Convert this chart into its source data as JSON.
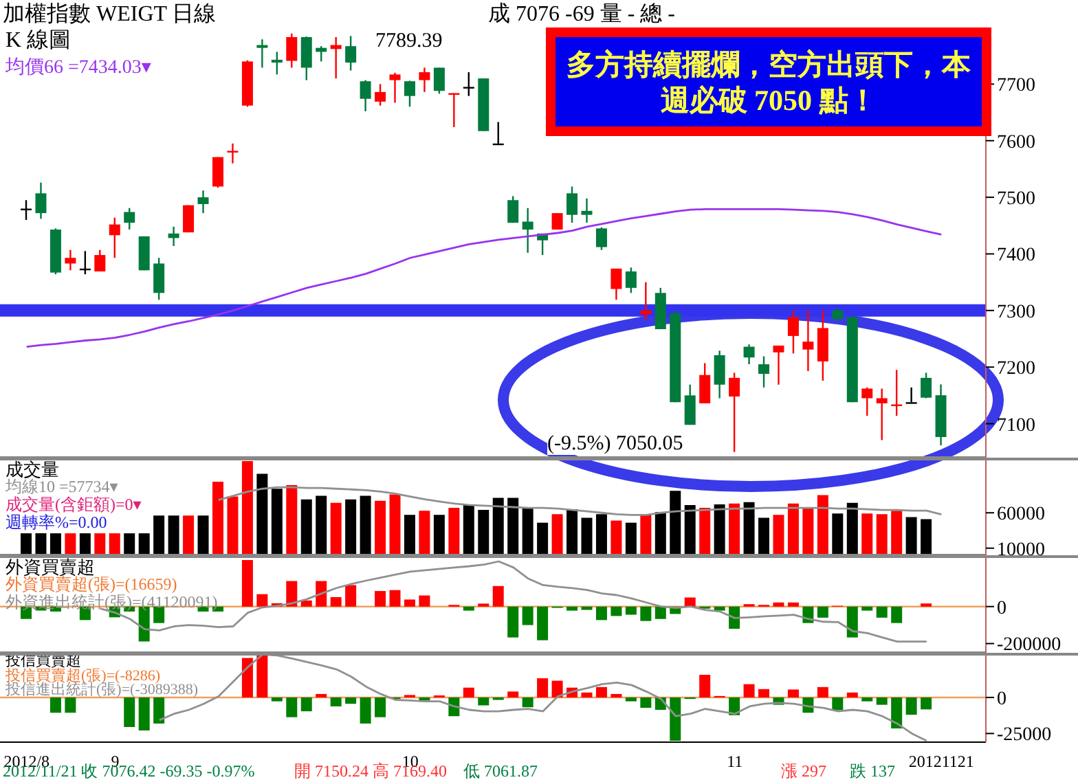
{
  "chart_data": [
    {
      "type": "candlestick",
      "title": "加權指數 WEIGT 日線",
      "subtitle": "成 7076 -69 量 - 總 -",
      "ylabel": "K 線圖",
      "tick_labels": "y",
      "legend": "top left",
      "categories": [
        "2012/8",
        null,
        null,
        null,
        null,
        null,
        "9",
        null,
        null,
        null,
        null,
        null,
        null,
        null,
        null,
        null,
        null,
        null,
        null,
        null,
        null,
        null,
        null,
        null,
        null,
        null,
        "10",
        null,
        null,
        null,
        null,
        null,
        null,
        null,
        null,
        null,
        null,
        null,
        null,
        null,
        null,
        null,
        null,
        null,
        null,
        null,
        null,
        null,
        "11",
        null,
        null,
        null,
        null,
        null,
        null,
        null,
        null,
        null,
        null,
        null,
        null,
        null,
        "20121121"
      ],
      "ohlc": [
        [
          7480,
          7495,
          7460,
          7480
        ],
        [
          7507,
          7526,
          7462,
          7472
        ],
        [
          7443,
          7445,
          7364,
          7367
        ],
        [
          7383,
          7407,
          7371,
          7393
        ],
        [
          7374,
          7405,
          7364,
          7374
        ],
        [
          7369,
          7407,
          7369,
          7398
        ],
        [
          7433,
          7464,
          7393,
          7452
        ],
        [
          7474,
          7481,
          7443,
          7455
        ],
        [
          7431,
          7431,
          7371,
          7371
        ],
        [
          7383,
          7393,
          7319,
          7331
        ],
        [
          7436,
          7448,
          7414,
          7428
        ],
        [
          7438,
          7486,
          7438,
          7486
        ],
        [
          7500,
          7512,
          7472,
          7488
        ],
        [
          7519,
          7571,
          7517,
          7571
        ],
        [
          7580,
          7595,
          7560,
          7582
        ],
        [
          7662,
          7742,
          7660,
          7740
        ],
        [
          7769,
          7779,
          7729,
          7764
        ],
        [
          7743,
          7757,
          7717,
          7738
        ],
        [
          7741,
          7789.39,
          7729,
          7783
        ],
        [
          7783,
          7784,
          7707,
          7729
        ],
        [
          7764,
          7767,
          7740,
          7757
        ],
        [
          7762,
          7783,
          7710,
          7769
        ],
        [
          7767,
          7785,
          7724,
          7738
        ],
        [
          7705,
          7707,
          7652,
          7674
        ],
        [
          7669,
          7700,
          7662,
          7686
        ],
        [
          7707,
          7720,
          7667,
          7717
        ],
        [
          7705,
          7706,
          7660,
          7679
        ],
        [
          7707,
          7729,
          7686,
          7721
        ],
        [
          7729,
          7729,
          7683,
          7688
        ],
        [
          7682,
          7684,
          7624,
          7684
        ],
        [
          7695,
          7721,
          7679,
          7695
        ],
        [
          7710,
          7710,
          7617,
          7617
        ],
        [
          7595,
          7633,
          7595,
          7595
        ],
        [
          7495,
          7502,
          7455,
          7455
        ],
        [
          7457,
          7481,
          7402,
          7443
        ],
        [
          7436,
          7436,
          7398,
          7424
        ],
        [
          7443,
          7472,
          7443,
          7472
        ],
        [
          7507,
          7519,
          7455,
          7469
        ],
        [
          7476,
          7498,
          7455,
          7469
        ],
        [
          7445,
          7447,
          7407,
          7412
        ],
        [
          7338,
          7374,
          7319,
          7374
        ],
        [
          7369,
          7376,
          7331,
          7340
        ],
        [
          7293,
          7350,
          7283,
          7300
        ],
        [
          7331,
          7340,
          7267,
          7267
        ],
        [
          7295,
          7300,
          7138,
          7138
        ],
        [
          7150,
          7169,
          7098,
          7098
        ],
        [
          7136,
          7207,
          7136,
          7186
        ],
        [
          7221,
          7229,
          7145,
          7169
        ],
        [
          7148,
          7190,
          7050.05,
          7181
        ],
        [
          7236,
          7240,
          7205,
          7217
        ],
        [
          7205,
          7219,
          7164,
          7188
        ],
        [
          7226,
          7238,
          7169,
          7238
        ],
        [
          7255,
          7300,
          7224,
          7288
        ],
        [
          7231,
          7300,
          7193,
          7245
        ],
        [
          7210,
          7300,
          7176,
          7269
        ],
        [
          7300,
          7305,
          7280,
          7285
        ],
        [
          7288,
          7290,
          7138,
          7138
        ],
        [
          7145,
          7164,
          7114,
          7162
        ],
        [
          7136,
          7162,
          7071,
          7145
        ],
        [
          7132,
          7195,
          7114,
          7134
        ],
        [
          7138,
          7164,
          7138,
          7138
        ],
        [
          7181,
          7190,
          7145,
          7146
        ],
        [
          7150.24,
          7169.4,
          7061.87,
          7076.42
        ]
      ],
      "colors": [
        "#000000",
        "#007a3d",
        "#007a3d",
        "#ff0000",
        "#000000",
        "#ff0000",
        "#ff0000",
        "#007a3d",
        "#007a3d",
        "#007a3d",
        "#007a3d",
        "#ff0000",
        "#007a3d",
        "#ff0000",
        "#ff0000",
        "#ff0000",
        "#007a3d",
        "#007a3d",
        "#ff0000",
        "#007a3d",
        "#007a3d",
        "#ff0000",
        "#007a3d",
        "#007a3d",
        "#ff0000",
        "#ff0000",
        "#007a3d",
        "#ff0000",
        "#007a3d",
        "#ff0000",
        "#000000",
        "#007a3d",
        "#000000",
        "#007a3d",
        "#007a3d",
        "#007a3d",
        "#ff0000",
        "#007a3d",
        "#007a3d",
        "#007a3d",
        "#ff0000",
        "#007a3d",
        "#ff0000",
        "#007a3d",
        "#007a3d",
        "#007a3d",
        "#ff0000",
        "#007a3d",
        "#ff0000",
        "#007a3d",
        "#007a3d",
        "#ff0000",
        "#ff0000",
        "#ff0000",
        "#ff0000",
        "#007a3d",
        "#007a3d",
        "#ff0000",
        "#ff0000",
        "#ff0000",
        "#000000",
        "#007a3d",
        "#007a3d"
      ],
      "series": [
        {
          "type": "line",
          "name": "均價66 =7434.03▾",
          "color": "#9933ee",
          "values": [
            7236,
            7239,
            7241,
            7244,
            7247,
            7249,
            7252,
            7257,
            7263,
            7270,
            7276,
            7281,
            7287,
            7293,
            7300,
            7308,
            7316,
            7324,
            7332,
            7340,
            7346,
            7352,
            7358,
            7365,
            7374,
            7383,
            7393,
            7399,
            7405,
            7411,
            7417,
            7421,
            7425,
            7428,
            7431,
            7434,
            7437,
            7441,
            7448,
            7453,
            7458,
            7463,
            7467,
            7471,
            7475,
            7478,
            7479,
            7479,
            7479,
            7479,
            7479,
            7479,
            7478,
            7477,
            7476,
            7474,
            7470,
            7465,
            7459,
            7452,
            7446,
            7440,
            7434.03
          ]
        }
      ],
      "ylim": [
        7040,
        7800
      ],
      "yticks": [
        7100,
        7200,
        7300,
        7400,
        7500,
        7600,
        7700
      ],
      "ref_lines": [
        {
          "axis": "y",
          "value": 7300,
          "color": "#3333ee"
        }
      ],
      "annotations": [
        "多方持續擺爛，空方出頭下，本週必破 7050 點！",
        "7789.39",
        "(-9.5%) 7050.05"
      ]
    },
    {
      "type": "bar",
      "ylabel": "成交量",
      "tick_labels": "y",
      "legend": "top left",
      "categories": [
        "2012/8",
        null,
        null,
        null,
        null,
        null,
        "9",
        null,
        null,
        null,
        null,
        null,
        null,
        null,
        null,
        null,
        null,
        null,
        null,
        null,
        null,
        null,
        null,
        null,
        null,
        null,
        "10",
        null,
        null,
        null,
        null,
        null,
        null,
        null,
        null,
        null,
        null,
        null,
        null,
        null,
        null,
        null,
        null,
        null,
        null,
        null,
        null,
        null,
        "11",
        null,
        null,
        null,
        null,
        null,
        null,
        null,
        null,
        null,
        null,
        null,
        null,
        null,
        "20121121"
      ],
      "series": [
        {
          "type": "bar",
          "values": [
            31000,
            31000,
            31000,
            31000,
            31000,
            31000,
            31000,
            31000,
            31000,
            56000,
            56000,
            56000,
            56000,
            104000,
            83000,
            133000,
            115000,
            94000,
            99000,
            79000,
            84000,
            74000,
            79000,
            84000,
            77000,
            86000,
            57000,
            63000,
            57000,
            67000,
            71000,
            64000,
            81000,
            81000,
            67000,
            46000,
            58000,
            65000,
            53000,
            58000,
            49000,
            46000,
            58000,
            61000,
            91000,
            71000,
            67000,
            72000,
            73000,
            75000,
            53000,
            57000,
            73000,
            67000,
            85000,
            59000,
            74000,
            59000,
            58000,
            63000,
            54000,
            51000,
            null
          ],
          "colors": [
            "#000000",
            "#000000",
            "#000000",
            "#ff0000",
            "#000000",
            "#ff0000",
            "#ff0000",
            "#000000",
            "#000000",
            "#000000",
            "#000000",
            "#ff0000",
            "#000000",
            "#ff0000",
            "#ff0000",
            "#ff0000",
            "#000000",
            "#000000",
            "#ff0000",
            "#000000",
            "#000000",
            "#ff0000",
            "#000000",
            "#000000",
            "#ff0000",
            "#ff0000",
            "#000000",
            "#ff0000",
            "#000000",
            "#ff0000",
            "#000000",
            "#000000",
            "#000000",
            "#000000",
            "#000000",
            "#000000",
            "#ff0000",
            "#000000",
            "#000000",
            "#000000",
            "#ff0000",
            "#000000",
            "#ff0000",
            "#000000",
            "#000000",
            "#000000",
            "#ff0000",
            "#000000",
            "#ff0000",
            "#000000",
            "#000000",
            "#ff0000",
            "#ff0000",
            "#ff0000",
            "#ff0000",
            "#000000",
            "#000000",
            "#ff0000",
            "#ff0000",
            "#ff0000",
            "#000000",
            "#000000",
            null
          ]
        },
        {
          "type": "line",
          "name": "均線10 =57734▾",
          "color": "#909090",
          "values": [
            null,
            null,
            null,
            null,
            null,
            null,
            null,
            null,
            null,
            null,
            null,
            null,
            null,
            78000,
            84000,
            90000,
            94000,
            96000,
            96000,
            95000,
            95000,
            94000,
            93000,
            92000,
            90000,
            87000,
            83000,
            79000,
            76000,
            73000,
            71000,
            70000,
            69000,
            68000,
            67000,
            67000,
            66000,
            64000,
            62000,
            60000,
            58000,
            57000,
            57000,
            60000,
            62000,
            63000,
            64000,
            65000,
            66000,
            66000,
            67000,
            67000,
            67000,
            67000,
            67000,
            66000,
            66000,
            65000,
            64000,
            64000,
            63000,
            63000,
            57734
          ]
        }
      ],
      "ylim": [
        0,
        136000
      ],
      "yticks": [
        10000,
        60000
      ],
      "annotations": [
        "成交量(含鉅額)=0▾",
        "週轉率%=0.00"
      ]
    },
    {
      "type": "bar",
      "ylabel": "外資買賣超",
      "tick_labels": "y",
      "legend": "top left",
      "categories": [
        "2012/8",
        null,
        null,
        null,
        null,
        null,
        "9",
        null,
        null,
        null,
        null,
        null,
        null,
        null,
        null,
        null,
        null,
        null,
        null,
        null,
        null,
        null,
        null,
        null,
        null,
        null,
        "10",
        null,
        null,
        null,
        null,
        null,
        null,
        null,
        null,
        null,
        null,
        null,
        null,
        null,
        null,
        null,
        null,
        null,
        null,
        null,
        null,
        null,
        "11",
        null,
        null,
        null,
        null,
        null,
        null,
        null,
        null,
        null,
        null,
        null,
        null,
        null,
        "20121121"
      ],
      "series": [
        {
          "type": "bar",
          "name": "外資買賣超(張)=(16659)",
          "color": "#f07830",
          "values": [
            -67000,
            -22000,
            -27000,
            null,
            -73000,
            null,
            -58000,
            -27000,
            -189000,
            -89000,
            null,
            null,
            -27000,
            -27000,
            null,
            251000,
            67000,
            18000,
            138000,
            33000,
            138000,
            51000,
            116000,
            null,
            84000,
            89000,
            38000,
            60000,
            null,
            9000,
            -22000,
            16000,
            111000,
            -167000,
            -100000,
            -182000,
            -7000,
            -22000,
            -18000,
            -73000,
            -51000,
            -44000,
            -78000,
            -67000,
            -40000,
            49000,
            -11000,
            -22000,
            -120000,
            13000,
            9000,
            22000,
            22000,
            -89000,
            -60000,
            4000,
            -167000,
            -22000,
            -60000,
            -89000,
            null,
            16659,
            null
          ],
          "colors": [
            "#008000",
            "#008000",
            "#008000",
            null,
            "#008000",
            null,
            "#008000",
            "#008000",
            "#008000",
            "#008000",
            null,
            null,
            "#008000",
            "#008000",
            null,
            "#ff0000",
            "#ff0000",
            "#ff0000",
            "#ff0000",
            "#ff0000",
            "#ff0000",
            "#ff0000",
            "#ff0000",
            null,
            "#ff0000",
            "#ff0000",
            "#ff0000",
            "#ff0000",
            null,
            "#ff0000",
            "#008000",
            "#ff0000",
            "#ff0000",
            "#008000",
            "#008000",
            "#008000",
            "#008000",
            "#008000",
            "#008000",
            "#008000",
            "#008000",
            "#008000",
            "#008000",
            "#008000",
            "#008000",
            "#ff0000",
            "#008000",
            "#008000",
            "#008000",
            "#ff0000",
            "#ff0000",
            "#ff0000",
            "#ff0000",
            "#008000",
            "#008000",
            "#ff0000",
            "#008000",
            "#008000",
            "#008000",
            "#008000",
            null,
            "#ff0000",
            null
          ]
        },
        {
          "type": "line",
          "name": "外資進出統計(張)=(41120091)",
          "color": "#909090",
          "values": [
            null,
            null,
            null,
            null,
            null,
            -11000,
            -33000,
            -67000,
            -122000,
            -129000,
            -107000,
            -100000,
            -104000,
            -111000,
            -107000,
            -33000,
            -4000,
            4000,
            18000,
            40000,
            71000,
            100000,
            122000,
            140000,
            156000,
            173000,
            189000,
            196000,
            204000,
            211000,
            218000,
            227000,
            244000,
            211000,
            151000,
            116000,
            107000,
            100000,
            89000,
            71000,
            62000,
            44000,
            22000,
            0,
            -7000,
            0,
            -18000,
            -27000,
            -62000,
            -58000,
            -53000,
            -49000,
            -44000,
            -67000,
            -82000,
            -84000,
            -133000,
            -144000,
            -167000,
            -189000,
            -189000,
            -189000,
            null
          ]
        }
      ],
      "ylim": [
        -250000,
        270000
      ],
      "yticks": [
        -200000,
        0
      ],
      "ref_lines": [
        {
          "axis": "y",
          "value": 0,
          "color": "#f0a060"
        }
      ]
    },
    {
      "type": "bar",
      "ylabel": "投信買賣超",
      "legend": "top left",
      "categories": [
        "2012/8",
        null,
        null,
        null,
        null,
        null,
        "9",
        null,
        null,
        null,
        null,
        null,
        null,
        null,
        null,
        null,
        null,
        null,
        null,
        null,
        null,
        null,
        null,
        null,
        null,
        null,
        "10",
        null,
        null,
        null,
        null,
        null,
        null,
        null,
        null,
        null,
        null,
        null,
        null,
        null,
        null,
        null,
        null,
        null,
        null,
        null,
        null,
        null,
        "11",
        null,
        null,
        null,
        null,
        null,
        null,
        null,
        null,
        null,
        null,
        null,
        null,
        null,
        "20121121"
      ],
      "series": [
        {
          "type": "bar",
          "name": "投信買賣超(張)=(-8286)",
          "color": "#f07830",
          "values": [
            null,
            null,
            -10600,
            -10600,
            null,
            null,
            null,
            -20500,
            -22900,
            -18100,
            null,
            null,
            null,
            null,
            null,
            27400,
            29800,
            -2700,
            -13700,
            -9600,
            2400,
            -6200,
            -4400,
            -18100,
            -13700,
            -1000,
            1700,
            -2100,
            1400,
            -13000,
            6800,
            -5500,
            -1700,
            4100,
            -6800,
            13300,
            11600,
            6800,
            3400,
            7200,
            2400,
            -2700,
            -7200,
            -8600,
            -30100,
            -1000,
            15700,
            1000,
            -12300,
            9200,
            5800,
            -5100,
            5500,
            -10600,
            7200,
            -8900,
            3400,
            -2700,
            -5100,
            -21500,
            -12000,
            -8286,
            null
          ],
          "colors": [
            null,
            null,
            "#008000",
            "#008000",
            null,
            null,
            null,
            "#008000",
            "#008000",
            "#008000",
            null,
            null,
            null,
            null,
            null,
            "#ff0000",
            "#ff0000",
            "#008000",
            "#008000",
            "#008000",
            "#ff0000",
            "#008000",
            "#008000",
            "#008000",
            "#008000",
            "#008000",
            "#ff0000",
            "#008000",
            "#ff0000",
            "#008000",
            "#ff0000",
            "#008000",
            "#008000",
            "#ff0000",
            "#008000",
            "#ff0000",
            "#ff0000",
            "#ff0000",
            "#ff0000",
            "#ff0000",
            "#ff0000",
            "#008000",
            "#008000",
            "#008000",
            "#008000",
            "#008000",
            "#ff0000",
            "#ff0000",
            "#008000",
            "#ff0000",
            "#ff0000",
            "#008000",
            "#ff0000",
            "#008000",
            "#ff0000",
            "#008000",
            "#ff0000",
            "#008000",
            "#008000",
            "#008000",
            "#008000",
            "#008000",
            null
          ]
        },
        {
          "type": "line",
          "name": "投信進出統計(張)=(-3089388)",
          "color": "#909090",
          "values": [
            null,
            null,
            null,
            null,
            null,
            null,
            null,
            null,
            null,
            -15700,
            -11300,
            -8600,
            -4400,
            700,
            10900,
            21200,
            29800,
            29100,
            27000,
            24600,
            22200,
            19500,
            14400,
            7500,
            2400,
            -1700,
            -2100,
            -2700,
            -2700,
            -6200,
            -8600,
            -9600,
            -9600,
            -8600,
            -7900,
            -9600,
            700,
            4100,
            6500,
            9200,
            10300,
            8600,
            4100,
            -1000,
            -13000,
            -11300,
            -7900,
            -9600,
            -11300,
            -6200,
            -4400,
            -3800,
            -4400,
            -6200,
            -7200,
            -9600,
            -8600,
            -9600,
            -13000,
            -18100,
            -25000,
            -30100,
            null
          ]
        }
      ],
      "ylim": [
        -31000,
        30000
      ],
      "yticks": [
        -25000,
        0
      ],
      "ref_lines": [
        {
          "axis": "y",
          "value": 0,
          "color": "#f0a060"
        }
      ],
      "annotations": [
        "2012/11/21 收 7076.42 -69.35 -0.97%",
        "開 7150.24 高 7169.40",
        "低 7061.87",
        "漲 297",
        "跌 137"
      ]
    }
  ]
}
